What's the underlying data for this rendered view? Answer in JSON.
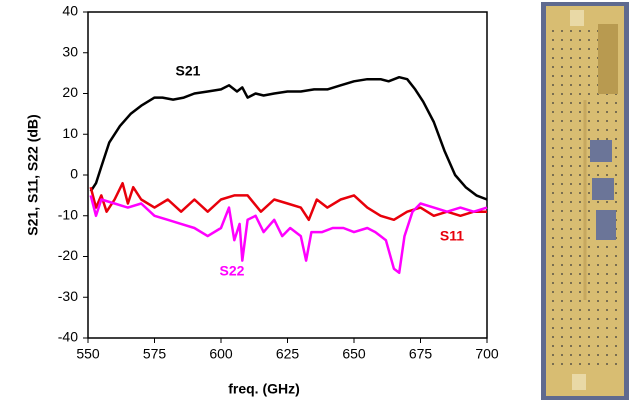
{
  "chart_data": {
    "type": "line",
    "xlabel": "freq. (GHz)",
    "ylabel": "S21, S11, S22 (dB)",
    "xlim": [
      550,
      700
    ],
    "xticks": [
      550,
      575,
      600,
      625,
      650,
      675,
      700
    ],
    "ylim": [
      -40,
      40
    ],
    "yticks": [
      -40,
      -30,
      -20,
      -10,
      0,
      10,
      20,
      30,
      40
    ],
    "grid": false,
    "series": [
      {
        "name": "S21",
        "color": "#000000",
        "x": [
          551,
          553,
          555,
          558,
          562,
          566,
          570,
          575,
          578,
          582,
          586,
          590,
          595,
          600,
          603,
          606,
          608,
          610,
          613,
          616,
          620,
          625,
          630,
          635,
          640,
          645,
          650,
          655,
          660,
          663,
          667,
          670,
          673,
          676,
          680,
          684,
          688,
          692,
          696,
          700
        ],
        "values": [
          -4,
          -2,
          2,
          8,
          12,
          15,
          17,
          19,
          19,
          18.5,
          19,
          20,
          20.5,
          21,
          22,
          20.5,
          21.5,
          19,
          20,
          19.5,
          20,
          20.5,
          20.5,
          21,
          21,
          22,
          23,
          23.5,
          23.5,
          23,
          24,
          23.5,
          21,
          18,
          13,
          6,
          0,
          -3,
          -5,
          -6
        ]
      },
      {
        "name": "S11",
        "color": "#e8000b",
        "x": [
          551,
          553,
          555,
          557,
          560,
          563,
          565,
          567,
          570,
          575,
          580,
          585,
          590,
          595,
          600,
          605,
          610,
          615,
          620,
          625,
          630,
          633,
          636,
          640,
          645,
          650,
          655,
          660,
          665,
          670,
          675,
          680,
          685,
          690,
          695,
          700
        ],
        "values": [
          -3,
          -8,
          -5,
          -9,
          -6,
          -2,
          -7,
          -3,
          -6,
          -8,
          -6,
          -9,
          -6,
          -9,
          -6,
          -5,
          -5,
          -9,
          -6,
          -7,
          -8,
          -11,
          -6,
          -8,
          -6,
          -5,
          -8,
          -10,
          -11,
          -9,
          -8,
          -10,
          -9,
          -10,
          -9,
          -9
        ]
      },
      {
        "name": "S22",
        "color": "#ff00ff",
        "x": [
          551,
          553,
          555,
          560,
          565,
          570,
          575,
          580,
          585,
          590,
          595,
          600,
          603,
          605,
          607,
          608,
          610,
          613,
          616,
          620,
          623,
          626,
          630,
          632,
          634,
          638,
          642,
          646,
          650,
          655,
          658,
          662,
          665,
          667,
          669,
          672,
          675,
          680,
          685,
          690,
          695,
          700
        ],
        "values": [
          -5,
          -10,
          -6,
          -7,
          -8,
          -7,
          -10,
          -11,
          -12,
          -13,
          -15,
          -13,
          -8,
          -16,
          -12,
          -21,
          -11,
          -10,
          -14,
          -11,
          -15,
          -13,
          -15,
          -21,
          -14,
          -14,
          -13,
          -13,
          -14,
          -13,
          -14,
          -16,
          -23,
          -24,
          -15,
          -9,
          -7,
          -8,
          -9,
          -8,
          -9,
          -8
        ]
      }
    ]
  }
}
